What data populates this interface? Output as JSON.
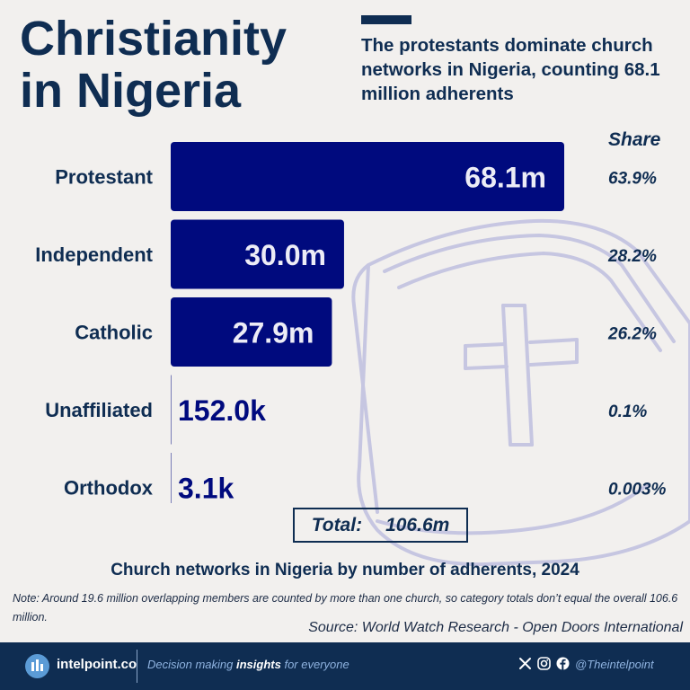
{
  "header": {
    "title_line1": "Christianity",
    "title_line2": "in Nigeria",
    "subtitle": "The protestants dominate church networks in Nigeria, counting 68.1 million adherents"
  },
  "chart_data": {
    "type": "bar",
    "orientation": "horizontal",
    "categories": [
      "Protestant",
      "Independent",
      "Catholic",
      "Unaffiliated",
      "Orthodox"
    ],
    "values": [
      68100000,
      30000000,
      27900000,
      152000,
      3100
    ],
    "value_labels": [
      "68.1m",
      "30.0m",
      "27.9m",
      "152.0k",
      "3.1k"
    ],
    "share_header": "Share",
    "shares": [
      "63.9%",
      "28.2%",
      "26.2%",
      "0.1%",
      "0.003%"
    ],
    "xlim": [
      0,
      68100000
    ],
    "bar_color": "#000a7e",
    "axis_color": "#0f2d52",
    "grid": false
  },
  "total": {
    "label": "Total:",
    "value": "106.6m"
  },
  "caption": "Church networks in Nigeria by number of adherents, 2024",
  "note": "Note: Around 19.6 million overlapping members are counted by more than one church, so category totals don’t equal the overall 106.6 million.",
  "source": "Source: World Watch Research - Open Doors International",
  "footer": {
    "brand": "intelpoint.co",
    "tagline_pre": "Decision making ",
    "tagline_bold": "insights",
    "tagline_post": " for everyone",
    "handle": "@Theintelpoint",
    "icons": [
      "logo-bars-icon",
      "x-icon",
      "instagram-icon",
      "facebook-icon"
    ]
  },
  "colors": {
    "background": "#f2f0ee",
    "navy": "#0f2d52",
    "bar": "#000a7e",
    "footer_accent": "#5b9bd6"
  }
}
